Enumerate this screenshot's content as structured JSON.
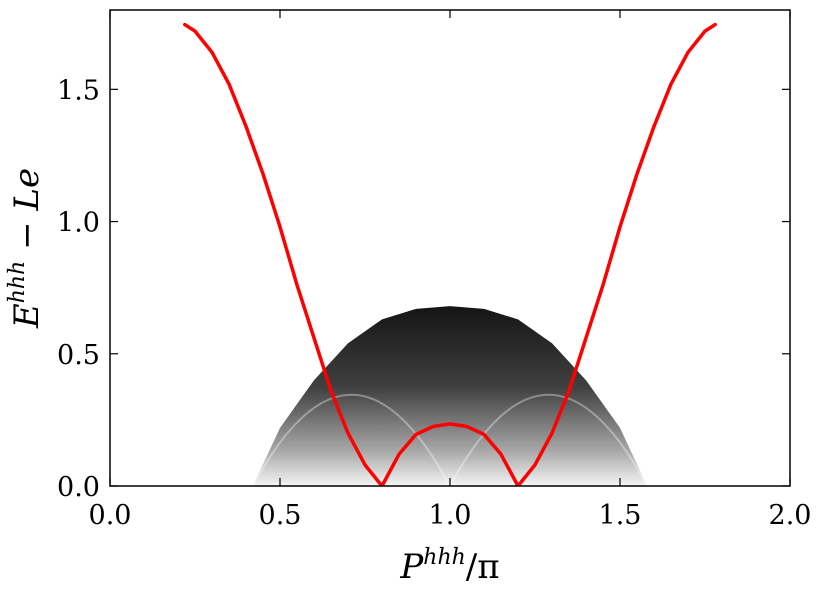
{
  "chart_data": {
    "type": "line",
    "title": "",
    "xlabel": {
      "base": "P",
      "sup": "hhh",
      "rest": "/π"
    },
    "ylabel": {
      "base": "E",
      "sup": "hhh",
      "rest": " − Le"
    },
    "xlim": [
      0.0,
      2.0
    ],
    "ylim": [
      0.0,
      1.8
    ],
    "xticks": [
      0.0,
      0.5,
      1.0,
      1.5,
      2.0
    ],
    "xtick_labels": [
      "0.0",
      "0.5",
      "1.0",
      "1.5",
      "2.0"
    ],
    "yticks": [
      0.0,
      0.5,
      1.0,
      1.5
    ],
    "ytick_labels": [
      "0.0",
      "0.5",
      "1.0",
      "1.5"
    ],
    "grid": false,
    "legend": "none",
    "series": [
      {
        "color": "#ff0000",
        "x": [
          0.22,
          0.25,
          0.3,
          0.35,
          0.4,
          0.45,
          0.5,
          0.55,
          0.6,
          0.65,
          0.7,
          0.75,
          0.8,
          0.85,
          0.9,
          0.95,
          1.0,
          1.05,
          1.1,
          1.15,
          1.2,
          1.25,
          1.3,
          1.35,
          1.4,
          1.45,
          1.5,
          1.55,
          1.6,
          1.65,
          1.7,
          1.75,
          1.78
        ],
        "y": [
          1.745,
          1.72,
          1.64,
          1.52,
          1.36,
          1.18,
          0.98,
          0.76,
          0.56,
          0.36,
          0.2,
          0.08,
          0.0,
          0.12,
          0.195,
          0.225,
          0.235,
          0.225,
          0.195,
          0.12,
          0.0,
          0.08,
          0.2,
          0.36,
          0.56,
          0.76,
          0.98,
          1.18,
          1.36,
          1.52,
          1.64,
          1.72,
          1.745
        ]
      }
    ],
    "continuum": {
      "color": "#000000",
      "upper_edge": {
        "x": [
          0.42,
          0.5,
          0.6,
          0.7,
          0.8,
          0.9,
          1.0,
          1.1,
          1.2,
          1.3,
          1.4,
          1.5,
          1.58
        ],
        "y": [
          0.0,
          0.22,
          0.4,
          0.54,
          0.63,
          0.67,
          0.68,
          0.67,
          0.63,
          0.54,
          0.4,
          0.22,
          0.0
        ]
      },
      "lower_edge": {
        "x": [
          0.42,
          0.6,
          0.8,
          1.0,
          1.2,
          1.4,
          1.58
        ],
        "y": [
          0.0,
          0.0,
          0.0,
          0.0,
          0.0,
          0.0,
          0.0
        ]
      }
    }
  }
}
